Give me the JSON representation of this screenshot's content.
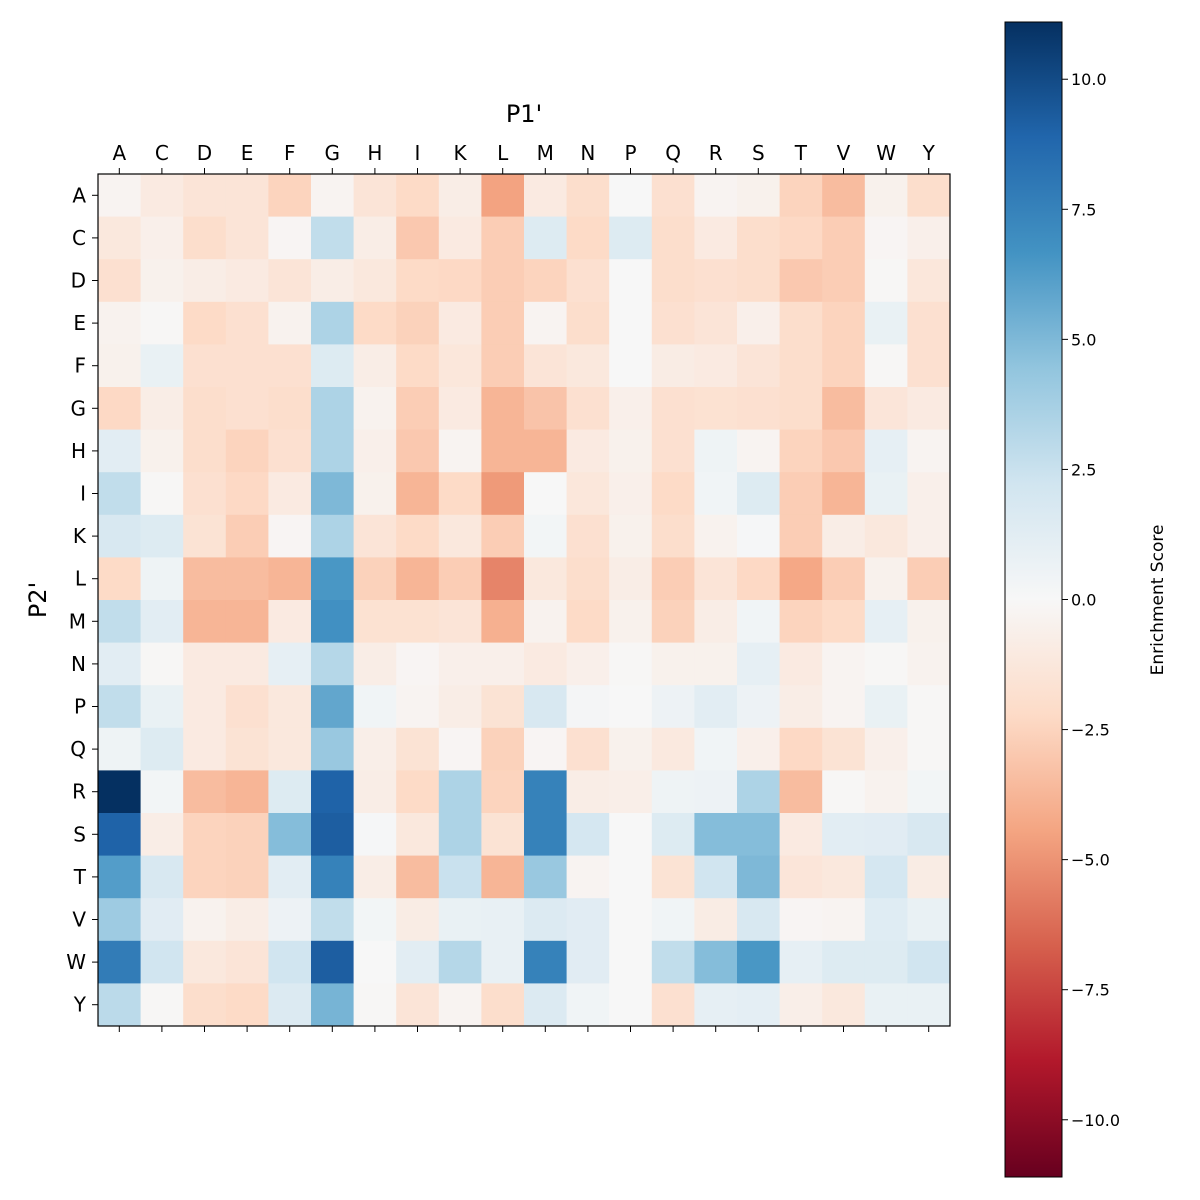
{
  "chart_data": {
    "type": "heatmap",
    "title": "",
    "xlabel": "P1'",
    "ylabel": "P2'",
    "x_position": "top",
    "x_categories": [
      "A",
      "C",
      "D",
      "E",
      "F",
      "G",
      "H",
      "I",
      "K",
      "L",
      "M",
      "N",
      "P",
      "Q",
      "R",
      "S",
      "T",
      "V",
      "W",
      "Y"
    ],
    "y_categories": [
      "A",
      "C",
      "D",
      "E",
      "F",
      "G",
      "H",
      "I",
      "K",
      "L",
      "M",
      "N",
      "P",
      "Q",
      "R",
      "S",
      "T",
      "V",
      "W",
      "Y"
    ],
    "colormap": "RdBu",
    "vlim": [
      -11.1,
      11.1
    ],
    "colorbar": {
      "label": "Enrichment Score",
      "ticks": [
        10.0,
        7.5,
        5.0,
        2.5,
        0.0,
        -2.5,
        -5.0,
        -7.5,
        -10.0
      ],
      "tick_labels": [
        "10.0",
        "7.5",
        "5.0",
        "2.5",
        "0.0",
        "−2.5",
        "−5.0",
        "−7.5",
        "−10.0"
      ]
    },
    "values": [
      [
        -0.3,
        -1,
        -1.5,
        -1.5,
        -2.5,
        -0.3,
        -1.5,
        -2.2,
        -0.8,
        -4.5,
        -1,
        -2,
        0,
        -1.8,
        -0.3,
        -0.5,
        -2.5,
        -3.5,
        -0.5,
        -2
      ],
      [
        -1.2,
        -0.6,
        -2,
        -1.5,
        -0.2,
        2.8,
        -0.8,
        -3,
        -1,
        -2.8,
        1.5,
        -2.2,
        1.5,
        -2,
        -1,
        -2,
        -2.3,
        -2.8,
        -0.2,
        -0.6
      ],
      [
        -1.8,
        -0.5,
        -0.8,
        -1,
        -1.5,
        -0.8,
        -1.2,
        -2.2,
        -2.3,
        -2.8,
        -2.5,
        -1.8,
        0,
        -2,
        -1.8,
        -2,
        -3,
        -2.8,
        -0.1,
        -1.3
      ],
      [
        -0.4,
        -0.1,
        -2.2,
        -1.8,
        -0.4,
        3.5,
        -2.2,
        -2.6,
        -1,
        -2.8,
        -0.3,
        -2,
        0,
        -1.8,
        -1.5,
        -0.6,
        -2,
        -2.5,
        0.8,
        -1.8
      ],
      [
        -0.5,
        0.8,
        -1.8,
        -1.8,
        -1.8,
        1.5,
        -0.8,
        -2.2,
        -1.3,
        -2.8,
        -1.5,
        -1.2,
        0,
        -0.9,
        -1,
        -1.5,
        -2,
        -2.5,
        -0.1,
        -1.8
      ],
      [
        -2.3,
        -0.8,
        -2,
        -1.8,
        -2,
        3.5,
        -0.4,
        -2.8,
        -1,
        -3.8,
        -3.2,
        -1.8,
        -0.6,
        -1.8,
        -1.7,
        -1.8,
        -2,
        -3.5,
        -1.4,
        -1
      ],
      [
        1.2,
        -0.5,
        -2,
        -2.5,
        -1.8,
        3.5,
        -0.6,
        -3,
        -0.3,
        -3.8,
        -3.8,
        -1,
        -0.5,
        -1.8,
        0.5,
        -0.3,
        -2.5,
        -3,
        1,
        -0.3
      ],
      [
        2.8,
        -0.1,
        -1.8,
        -2.3,
        -1,
        5,
        -0.5,
        -3.8,
        -2.2,
        -4.8,
        0,
        -1.3,
        -0.6,
        -2.2,
        0.4,
        1.5,
        -2.8,
        -3.8,
        0.8,
        -0.6
      ],
      [
        1.8,
        1.5,
        -1.6,
        -2.8,
        -0.2,
        3.5,
        -1.5,
        -2.2,
        -1.2,
        -2.8,
        0.3,
        -1.8,
        -0.5,
        -2,
        -0.4,
        0.1,
        -2.8,
        -0.8,
        -1.2,
        -0.6
      ],
      [
        -2.2,
        0.5,
        -3.5,
        -3.5,
        -3.8,
        6.5,
        -2.6,
        -3.8,
        -2.8,
        -5.5,
        -1.2,
        -2,
        -0.8,
        -2.8,
        -1.5,
        -2.3,
        -4.3,
        -2.8,
        -0.5,
        -2.8
      ],
      [
        2.8,
        1.2,
        -3.8,
        -3.8,
        -1,
        6.8,
        -1.7,
        -1.7,
        -1.5,
        -4,
        -0.4,
        -2.2,
        -0.5,
        -2.6,
        -0.8,
        0.4,
        -2.5,
        -2.2,
        1,
        -0.5
      ],
      [
        1.2,
        -0.1,
        -1,
        -1,
        1,
        3.2,
        -0.8,
        -0.2,
        -0.6,
        -0.6,
        -1,
        -0.6,
        -0.1,
        -0.5,
        -0.5,
        1,
        -1,
        -0.3,
        -0.1,
        -0.4
      ],
      [
        2.8,
        0.8,
        -1,
        -1.8,
        -1.2,
        5.8,
        0.4,
        -0.3,
        -0.8,
        -1.6,
        1.8,
        0.2,
        0,
        0.6,
        1.2,
        0.6,
        -0.8,
        -0.3,
        0.8,
        -0.1
      ],
      [
        0.5,
        1.5,
        -1,
        -1.6,
        -1.2,
        4.2,
        -0.7,
        -1.6,
        -0.2,
        -2.6,
        -0.2,
        -1.8,
        -0.5,
        -1.1,
        0.4,
        -0.6,
        -2.3,
        -1.6,
        -0.6,
        -0.1
      ],
      [
        11.1,
        0.3,
        -3.5,
        -3.8,
        1.5,
        9,
        -0.8,
        -2.2,
        3.5,
        -2.5,
        7.5,
        -0.8,
        -0.7,
        0.5,
        0.6,
        3.5,
        -3.5,
        -0.1,
        -0.4,
        0.3
      ],
      [
        9,
        -0.8,
        -2.5,
        -2.6,
        4.8,
        9.2,
        0.1,
        -1.2,
        3.5,
        -1.6,
        7.5,
        2,
        0,
        1.5,
        4.8,
        4.8,
        -1,
        1.2,
        1.3,
        1.8
      ],
      [
        6.2,
        1.8,
        -2.5,
        -2.6,
        1.2,
        7.5,
        -0.8,
        -3.5,
        2.5,
        -3.8,
        4.2,
        -0.3,
        0,
        -1.6,
        2.2,
        5,
        -1.4,
        -1.2,
        2,
        -0.9
      ],
      [
        4,
        1.3,
        -0.4,
        -0.8,
        0.6,
        2.8,
        0.3,
        -0.9,
        0.8,
        0.9,
        1.6,
        1.3,
        0,
        0.4,
        -0.9,
        1.8,
        -0.2,
        -0.3,
        1.4,
        0.8
      ],
      [
        7.8,
        2.2,
        -1.2,
        -1.5,
        2.2,
        9.2,
        0,
        1.2,
        3.2,
        0.9,
        7.5,
        1.3,
        0,
        2.8,
        4.8,
        6.5,
        1,
        1.5,
        1.5,
        2.2
      ],
      [
        3,
        -0.1,
        -2,
        -2.2,
        1.6,
        5.2,
        -0.1,
        -1.5,
        -0.3,
        -2,
        1.6,
        0.4,
        0,
        -1.8,
        1,
        1.1,
        -0.7,
        -1.2,
        0.8,
        0.8
      ]
    ]
  }
}
